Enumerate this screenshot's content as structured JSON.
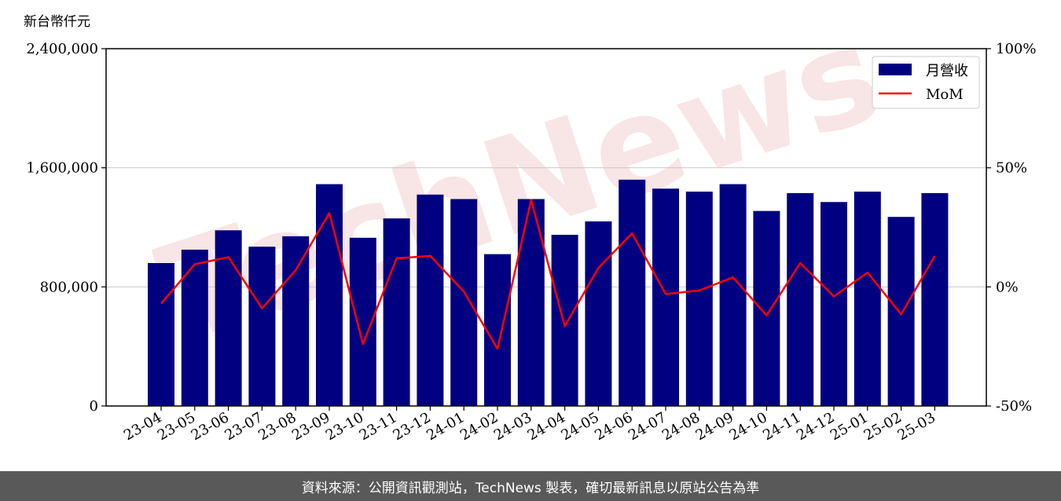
{
  "chart_data": {
    "type": "bar",
    "ylabel": "新台幣仟元",
    "categories": [
      "23-04",
      "23-05",
      "23-06",
      "23-07",
      "23-08",
      "23-09",
      "23-10",
      "23-11",
      "23-12",
      "24-01",
      "24-02",
      "24-03",
      "24-04",
      "24-05",
      "24-06",
      "24-07",
      "24-08",
      "24-09",
      "24-10",
      "24-11",
      "24-12",
      "25-01",
      "25-02",
      "25-03"
    ],
    "series": [
      {
        "name": "月營收",
        "type": "bar",
        "axis": "left",
        "color": "#000080",
        "values": [
          960000,
          1050000,
          1180000,
          1070000,
          1140000,
          1490000,
          1130000,
          1260000,
          1420000,
          1390000,
          1020000,
          1390000,
          1150000,
          1240000,
          1520000,
          1460000,
          1440000,
          1490000,
          1310000,
          1430000,
          1370000,
          1440000,
          1270000,
          1430000
        ]
      },
      {
        "name": "MoM",
        "type": "line",
        "axis": "right",
        "color": "#ff0000",
        "values": [
          -7,
          9.5,
          12.5,
          -9,
          7,
          31,
          -24,
          12,
          13,
          -2,
          -26,
          36.5,
          -16.5,
          8,
          22.5,
          -3,
          -1.5,
          4,
          -12,
          10,
          -4,
          6,
          -11.5,
          13
        ]
      }
    ],
    "ylim": [
      0,
      2400000
    ],
    "yticks": [
      "0",
      "800,000",
      "1,600,000",
      "2,400,000"
    ],
    "y2lim": [
      -50,
      100
    ],
    "y2ticks": [
      "-50%",
      "0%",
      "50%",
      "100%"
    ],
    "grid": "horizontal",
    "legend": "top-right"
  },
  "watermark": "TechNews",
  "footer": {
    "text": "資料來源：公開資訊觀測站，TechNews 製表，確切最新訊息以原站公告為準"
  }
}
